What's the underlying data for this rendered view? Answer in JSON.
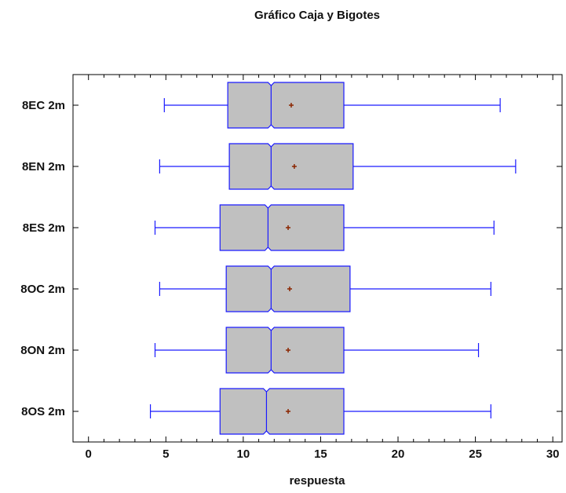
{
  "chart_data": {
    "type": "boxplot",
    "orientation": "horizontal",
    "notched": true,
    "title": "Gráfico Caja y Bigotes",
    "xlabel": "respuesta",
    "ylabel": "",
    "xlim": [
      -1.0,
      30.6
    ],
    "xticks": [
      0,
      5,
      10,
      15,
      20,
      25,
      30
    ],
    "grid": false,
    "colors": {
      "box_fill": "#c0c0c0",
      "box_stroke": "#1a1aff",
      "whisker": "#1a1aff",
      "mean_marker": "#8b2500",
      "frame": "#000000"
    },
    "categories": [
      "8EC 2m",
      "8EN 2m",
      "8ES 2m",
      "8OC 2m",
      "8ON 2m",
      "8OS 2m"
    ],
    "series": [
      {
        "category": "8EC 2m",
        "min": 4.9,
        "q1": 9.0,
        "median": 11.8,
        "q3": 16.5,
        "max": 26.6,
        "mean": 13.1,
        "notch_low": 11.6,
        "notch_high": 12.0
      },
      {
        "category": "8EN 2m",
        "min": 4.6,
        "q1": 9.1,
        "median": 11.8,
        "q3": 17.1,
        "max": 27.6,
        "mean": 13.3,
        "notch_low": 11.6,
        "notch_high": 12.0
      },
      {
        "category": "8ES 2m",
        "min": 4.3,
        "q1": 8.5,
        "median": 11.6,
        "q3": 16.5,
        "max": 26.2,
        "mean": 12.9,
        "notch_low": 11.4,
        "notch_high": 11.8
      },
      {
        "category": "8OC 2m",
        "min": 4.6,
        "q1": 8.9,
        "median": 11.8,
        "q3": 16.9,
        "max": 26.0,
        "mean": 13.0,
        "notch_low": 11.6,
        "notch_high": 12.0
      },
      {
        "category": "8ON 2m",
        "min": 4.3,
        "q1": 8.9,
        "median": 11.8,
        "q3": 16.5,
        "max": 25.2,
        "mean": 12.9,
        "notch_low": 11.6,
        "notch_high": 12.0
      },
      {
        "category": "8OS 2m",
        "min": 4.0,
        "q1": 8.5,
        "median": 11.5,
        "q3": 16.5,
        "max": 26.0,
        "mean": 12.9,
        "notch_low": 11.3,
        "notch_high": 11.7
      }
    ]
  }
}
